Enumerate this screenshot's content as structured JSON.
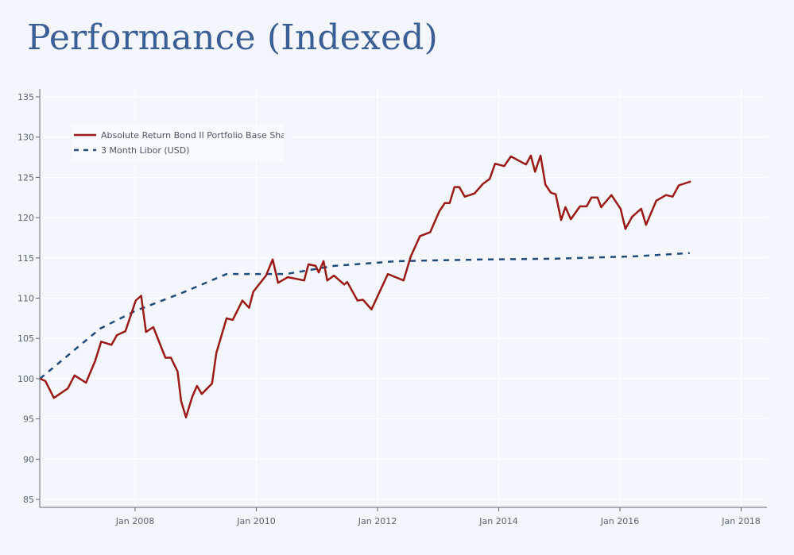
{
  "page": {
    "title": "Performance (Indexed)"
  },
  "chart_data": {
    "type": "line",
    "title": "Performance (Indexed)",
    "xlabel": "",
    "ylabel": "",
    "x_axis": {
      "type": "date",
      "range": [
        2006.43,
        2018.4
      ],
      "ticks": [
        {
          "value": 2008,
          "label": "Jan 2008"
        },
        {
          "value": 2010,
          "label": "Jan 2010"
        },
        {
          "value": 2012,
          "label": "Jan 2012"
        },
        {
          "value": 2014,
          "label": "Jan 2014"
        },
        {
          "value": 2016,
          "label": "Jan 2016"
        },
        {
          "value": 2018,
          "label": "Jan 2018"
        }
      ]
    },
    "y_axis": {
      "range": [
        84,
        136
      ],
      "ticks": [
        85,
        90,
        95,
        100,
        105,
        110,
        115,
        120,
        125,
        130,
        135
      ]
    },
    "grid": true,
    "legend": {
      "placement": "top-left",
      "entries": [
        {
          "label": "Absolute Return Bond II Portfolio Base Sha",
          "style": "solid",
          "color": "#9b1a16"
        },
        {
          "label": "3 Month Libor (USD)",
          "style": "dashed",
          "color": "#1f4a7c"
        }
      ]
    },
    "series": [
      {
        "name": "Absolute Return Bond II Portfolio Base Share",
        "color": "#9b1a16",
        "style": "solid",
        "points": [
          [
            2006.43,
            100.0
          ],
          [
            2006.52,
            99.7
          ],
          [
            2006.66,
            97.6
          ],
          [
            2006.89,
            98.8
          ],
          [
            2007.0,
            100.4
          ],
          [
            2007.19,
            99.5
          ],
          [
            2007.34,
            102.2
          ],
          [
            2007.44,
            104.6
          ],
          [
            2007.61,
            104.2
          ],
          [
            2007.7,
            105.4
          ],
          [
            2007.84,
            105.9
          ],
          [
            2008.01,
            109.7
          ],
          [
            2008.1,
            110.3
          ],
          [
            2008.18,
            105.8
          ],
          [
            2008.3,
            106.4
          ],
          [
            2008.5,
            102.6
          ],
          [
            2008.59,
            102.6
          ],
          [
            2008.7,
            100.9
          ],
          [
            2008.76,
            97.2
          ],
          [
            2008.84,
            95.2
          ],
          [
            2008.94,
            97.7
          ],
          [
            2009.02,
            99.1
          ],
          [
            2009.1,
            98.1
          ],
          [
            2009.27,
            99.4
          ],
          [
            2009.34,
            103.2
          ],
          [
            2009.51,
            107.5
          ],
          [
            2009.61,
            107.3
          ],
          [
            2009.77,
            109.7
          ],
          [
            2009.88,
            108.8
          ],
          [
            2009.95,
            110.8
          ],
          [
            2010.16,
            112.8
          ],
          [
            2010.27,
            114.8
          ],
          [
            2010.36,
            111.9
          ],
          [
            2010.52,
            112.6
          ],
          [
            2010.66,
            112.4
          ],
          [
            2010.79,
            112.2
          ],
          [
            2010.86,
            114.2
          ],
          [
            2010.98,
            114.0
          ],
          [
            2011.03,
            113.2
          ],
          [
            2011.11,
            114.6
          ],
          [
            2011.17,
            112.2
          ],
          [
            2011.28,
            112.8
          ],
          [
            2011.45,
            111.7
          ],
          [
            2011.5,
            112.0
          ],
          [
            2011.67,
            109.7
          ],
          [
            2011.76,
            109.8
          ],
          [
            2011.9,
            108.6
          ],
          [
            2012.17,
            113.0
          ],
          [
            2012.43,
            112.2
          ],
          [
            2012.55,
            115.2
          ],
          [
            2012.7,
            117.7
          ],
          [
            2012.87,
            118.2
          ],
          [
            2013.02,
            120.8
          ],
          [
            2013.11,
            121.8
          ],
          [
            2013.19,
            121.8
          ],
          [
            2013.27,
            123.8
          ],
          [
            2013.35,
            123.8
          ],
          [
            2013.44,
            122.6
          ],
          [
            2013.6,
            123.0
          ],
          [
            2013.74,
            124.2
          ],
          [
            2013.85,
            124.8
          ],
          [
            2013.94,
            126.7
          ],
          [
            2014.09,
            126.4
          ],
          [
            2014.2,
            127.6
          ],
          [
            2014.45,
            126.6
          ],
          [
            2014.53,
            127.7
          ],
          [
            2014.6,
            125.7
          ],
          [
            2014.69,
            127.7
          ],
          [
            2014.77,
            124.1
          ],
          [
            2014.86,
            123.1
          ],
          [
            2014.94,
            122.9
          ],
          [
            2015.03,
            119.7
          ],
          [
            2015.1,
            121.3
          ],
          [
            2015.19,
            119.8
          ],
          [
            2015.34,
            121.4
          ],
          [
            2015.45,
            121.4
          ],
          [
            2015.53,
            122.5
          ],
          [
            2015.63,
            122.5
          ],
          [
            2015.69,
            121.3
          ],
          [
            2015.86,
            122.8
          ],
          [
            2016.01,
            121.1
          ],
          [
            2016.09,
            118.6
          ],
          [
            2016.2,
            120.1
          ],
          [
            2016.35,
            121.1
          ],
          [
            2016.43,
            119.1
          ],
          [
            2016.6,
            122.1
          ],
          [
            2016.76,
            122.8
          ],
          [
            2016.87,
            122.6
          ],
          [
            2016.97,
            124.0
          ],
          [
            2017.17,
            124.5
          ]
        ]
      },
      {
        "name": "3 Month Libor (USD)",
        "color": "#1f4a7c",
        "style": "dashed",
        "points": [
          [
            2006.43,
            100.0
          ],
          [
            2007.42,
            106.2
          ],
          [
            2008.0,
            108.4
          ],
          [
            2008.79,
            110.7
          ],
          [
            2009.51,
            113.0
          ],
          [
            2010.49,
            113.0
          ],
          [
            2011.28,
            114.0
          ],
          [
            2012.33,
            114.6
          ],
          [
            2013.73,
            114.8
          ],
          [
            2014.95,
            114.9
          ],
          [
            2016.26,
            115.2
          ],
          [
            2017.15,
            115.6
          ]
        ]
      }
    ]
  }
}
